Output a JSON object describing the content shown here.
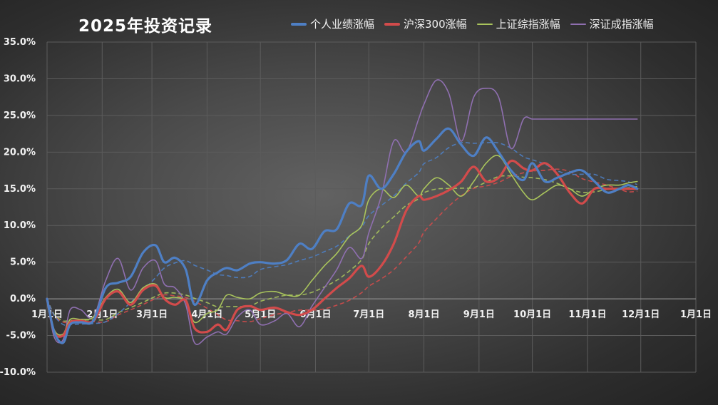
{
  "title": "2025年投资记录",
  "colors": {
    "personal": "#4e7fc4",
    "hs300": "#d24b4b",
    "sse": "#a9c45c",
    "szse": "#8f6fb0",
    "grid": "#5c5c5c",
    "tick_text": "#f2f2f2"
  },
  "chart_data": {
    "type": "line",
    "ylim": [
      -10,
      35
    ],
    "y_ticks": [
      "35.0%",
      "30.0%",
      "25.0%",
      "20.0%",
      "15.0%",
      "10.0%",
      "5.0%",
      "0.0%",
      "-5.0%",
      "-10.0%"
    ],
    "y_tick_values": [
      35,
      30,
      25,
      20,
      15,
      10,
      5,
      0,
      -5,
      -10
    ],
    "x_ticks": [
      "1月1日",
      "2月1日",
      "3月1日",
      "4月1日",
      "5月1日",
      "6月1日",
      "7月1日",
      "8月1日",
      "9月1日",
      "10月1日",
      "11月1日",
      "12月1日",
      "1月1日"
    ],
    "x_tick_dates": [
      "2025-01-01",
      "2025-02-01",
      "2025-03-01",
      "2025-04-01",
      "2025-05-01",
      "2025-06-01",
      "2025-07-01",
      "2025-08-01",
      "2025-09-01",
      "2025-10-01",
      "2025-11-01",
      "2025-12-01",
      "2026-01-01"
    ],
    "xlabel": "",
    "ylabel": "",
    "grid": true,
    "legend_position": "top",
    "trendlines": "dashed moving average for each series",
    "series": [
      {
        "name": "个人业绩涨幅",
        "color_key": "personal",
        "width": 3.2,
        "x": [
          "2025-01-01",
          "2025-01-05",
          "2025-01-10",
          "2025-01-14",
          "2025-01-20",
          "2025-01-27",
          "2025-02-03",
          "2025-02-10",
          "2025-02-17",
          "2025-02-24",
          "2025-03-03",
          "2025-03-08",
          "2025-03-14",
          "2025-03-20",
          "2025-03-25",
          "2025-04-01",
          "2025-04-07",
          "2025-04-12",
          "2025-04-18",
          "2025-04-25",
          "2025-05-01",
          "2025-05-09",
          "2025-05-16",
          "2025-05-23",
          "2025-05-30",
          "2025-06-06",
          "2025-06-13",
          "2025-06-20",
          "2025-06-27",
          "2025-07-01",
          "2025-07-08",
          "2025-07-15",
          "2025-07-22",
          "2025-07-29",
          "2025-08-01",
          "2025-08-08",
          "2025-08-15",
          "2025-08-22",
          "2025-08-29",
          "2025-09-05",
          "2025-09-12",
          "2025-09-19",
          "2025-09-26",
          "2025-10-01",
          "2025-10-08",
          "2025-10-15",
          "2025-10-22",
          "2025-10-29",
          "2025-11-05",
          "2025-11-12",
          "2025-11-19",
          "2025-11-24",
          "2025-11-29"
        ],
        "y": [
          0,
          -4.5,
          -6,
          -3.5,
          -3.2,
          -3,
          1.5,
          2.2,
          3,
          6.3,
          7.3,
          5,
          5.6,
          4,
          -0.8,
          2.5,
          3.6,
          4.2,
          3.9,
          4.8,
          5.0,
          4.8,
          5.3,
          7.5,
          6.8,
          9.2,
          9.5,
          13.0,
          12.8,
          16.8,
          15.0,
          17.0,
          20.0,
          21.5,
          20.2,
          21.8,
          23.2,
          21.0,
          19.5,
          22.0,
          20.0,
          17.5,
          16.2,
          18.5,
          16.0,
          16.5,
          17.2,
          17.5,
          16.0,
          14.5,
          15.0,
          15.5,
          15.0
        ]
      },
      {
        "name": "沪深300涨幅",
        "color_key": "hs300",
        "width": 3.2,
        "x": [
          "2025-01-01",
          "2025-01-05",
          "2025-01-10",
          "2025-01-14",
          "2025-01-20",
          "2025-01-27",
          "2025-02-03",
          "2025-02-10",
          "2025-02-17",
          "2025-02-24",
          "2025-03-03",
          "2025-03-08",
          "2025-03-14",
          "2025-03-20",
          "2025-03-25",
          "2025-04-01",
          "2025-04-07",
          "2025-04-12",
          "2025-04-18",
          "2025-04-25",
          "2025-05-01",
          "2025-05-09",
          "2025-05-16",
          "2025-05-23",
          "2025-05-30",
          "2025-06-06",
          "2025-06-13",
          "2025-06-20",
          "2025-06-27",
          "2025-07-01",
          "2025-07-08",
          "2025-07-15",
          "2025-07-22",
          "2025-07-29",
          "2025-08-01",
          "2025-08-08",
          "2025-08-15",
          "2025-08-22",
          "2025-08-29",
          "2025-09-05",
          "2025-09-12",
          "2025-09-19",
          "2025-09-26",
          "2025-10-01",
          "2025-10-08",
          "2025-10-15",
          "2025-10-22",
          "2025-10-29",
          "2025-11-05",
          "2025-11-12",
          "2025-11-19",
          "2025-11-24",
          "2025-11-29"
        ],
        "y": [
          0,
          -4.5,
          -5,
          -3.2,
          -3,
          -3,
          0,
          1.0,
          -0.8,
          1.2,
          1.8,
          0,
          -0.8,
          -0.2,
          -4.0,
          -4.5,
          -3.5,
          -4.2,
          -1.5,
          -1.0,
          -1.5,
          -1.2,
          -1.8,
          -2.2,
          -1.5,
          0.0,
          1.5,
          2.8,
          4.5,
          3.0,
          4.5,
          7.5,
          12.0,
          14.0,
          13.5,
          14.0,
          14.8,
          16.0,
          18.0,
          16.0,
          16.5,
          18.8,
          17.8,
          17.5,
          18.5,
          17.0,
          14.5,
          13.0,
          15.0,
          15.0,
          15.0,
          15.0,
          15.0
        ]
      },
      {
        "name": "上证综指涨幅",
        "color_key": "sse",
        "width": 1.6,
        "x": [
          "2025-01-01",
          "2025-01-05",
          "2025-01-10",
          "2025-01-14",
          "2025-01-20",
          "2025-01-27",
          "2025-02-03",
          "2025-02-10",
          "2025-02-17",
          "2025-02-24",
          "2025-03-03",
          "2025-03-08",
          "2025-03-14",
          "2025-03-20",
          "2025-03-25",
          "2025-04-01",
          "2025-04-07",
          "2025-04-12",
          "2025-04-18",
          "2025-04-25",
          "2025-05-01",
          "2025-05-09",
          "2025-05-16",
          "2025-05-23",
          "2025-05-30",
          "2025-06-06",
          "2025-06-13",
          "2025-06-20",
          "2025-06-27",
          "2025-07-01",
          "2025-07-08",
          "2025-07-15",
          "2025-07-22",
          "2025-07-29",
          "2025-08-01",
          "2025-08-08",
          "2025-08-15",
          "2025-08-22",
          "2025-08-29",
          "2025-09-05",
          "2025-09-12",
          "2025-09-19",
          "2025-09-26",
          "2025-10-01",
          "2025-10-08",
          "2025-10-15",
          "2025-10-22",
          "2025-10-29",
          "2025-11-05",
          "2025-11-12",
          "2025-11-19",
          "2025-11-24",
          "2025-11-29"
        ],
        "y": [
          0,
          -4.2,
          -4.8,
          -2.8,
          -2.8,
          -2.5,
          0.2,
          1.3,
          -0.5,
          1.5,
          2.0,
          0.2,
          0.2,
          -0.3,
          -3.2,
          -2.0,
          -1.5,
          0.5,
          0.2,
          0.0,
          0.8,
          1.0,
          0.5,
          0.5,
          2.5,
          4.5,
          6.2,
          8.5,
          10.0,
          13.5,
          15.0,
          13.8,
          15.5,
          14.0,
          15.0,
          16.5,
          15.5,
          14.0,
          16.0,
          18.5,
          19.5,
          17.0,
          14.5,
          13.5,
          14.5,
          15.5,
          15.0,
          14.0,
          15.0,
          15.5,
          15.5,
          15.8,
          16.0
        ]
      },
      {
        "name": "深证成指涨幅",
        "color_key": "szse",
        "width": 1.6,
        "x": [
          "2025-01-01",
          "2025-01-05",
          "2025-01-10",
          "2025-01-14",
          "2025-01-20",
          "2025-01-27",
          "2025-02-03",
          "2025-02-10",
          "2025-02-17",
          "2025-02-24",
          "2025-03-03",
          "2025-03-08",
          "2025-03-14",
          "2025-03-20",
          "2025-03-25",
          "2025-04-01",
          "2025-04-07",
          "2025-04-12",
          "2025-04-18",
          "2025-04-25",
          "2025-05-01",
          "2025-05-09",
          "2025-05-16",
          "2025-05-23",
          "2025-05-30",
          "2025-06-06",
          "2025-06-13",
          "2025-06-20",
          "2025-06-27",
          "2025-07-01",
          "2025-07-08",
          "2025-07-15",
          "2025-07-22",
          "2025-07-29",
          "2025-08-01",
          "2025-08-08",
          "2025-08-15",
          "2025-08-22",
          "2025-08-29",
          "2025-09-05",
          "2025-09-12",
          "2025-09-19",
          "2025-09-26",
          "2025-10-01",
          "2025-10-08",
          "2025-10-15",
          "2025-10-22",
          "2025-10-29",
          "2025-11-05",
          "2025-11-12",
          "2025-11-19",
          "2025-11-24",
          "2025-11-29"
        ],
        "y": [
          0,
          -5.2,
          -5.6,
          -1.5,
          -1.5,
          -2.5,
          2.5,
          5.5,
          1.2,
          4.2,
          5.2,
          2.0,
          1.5,
          -0.8,
          -6.0,
          -5.2,
          -4.5,
          -4.8,
          -2.5,
          -1.5,
          -3.5,
          -3.0,
          -2.0,
          -3.8,
          -1.0,
          1.5,
          4.0,
          7.0,
          5.5,
          9.0,
          14.0,
          21.5,
          20.0,
          24.5,
          26.5,
          29.8,
          28.0,
          21.5,
          27.5,
          28.7,
          27.5,
          20.5,
          24.5,
          24.5,
          24.5,
          24.5,
          24.5,
          24.5,
          24.5,
          24.5,
          24.5,
          24.5,
          24.5
        ]
      }
    ]
  }
}
